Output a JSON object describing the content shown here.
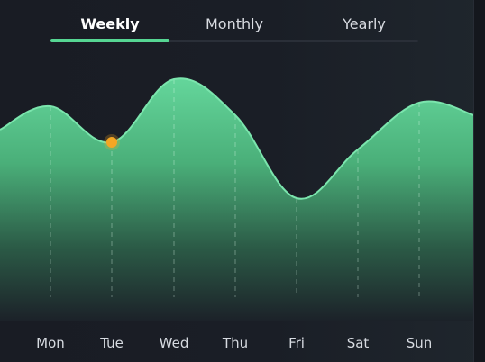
{
  "tabs": [
    {
      "label": "Weekly",
      "active": true
    },
    {
      "label": "Monthly",
      "active": false
    },
    {
      "label": "Yearly",
      "active": false
    }
  ],
  "chart_data": {
    "type": "area",
    "categories": [
      "Mon",
      "Tue",
      "Wed",
      "Thu",
      "Fri",
      "Sat",
      "Sun"
    ],
    "values": [
      118,
      158,
      88,
      128,
      220,
      166,
      114
    ],
    "highlighted_category": "Tue",
    "grid": "dashed vertical lines at each day",
    "title": "",
    "xlabel": "",
    "ylabel": ""
  },
  "colors": {
    "background": "#1a1e26",
    "area_top": "#64d69b",
    "area_bottom": "#1c2229",
    "line": "#7be5ad",
    "active_tab": "#56d693",
    "marker": "#f5a623"
  }
}
